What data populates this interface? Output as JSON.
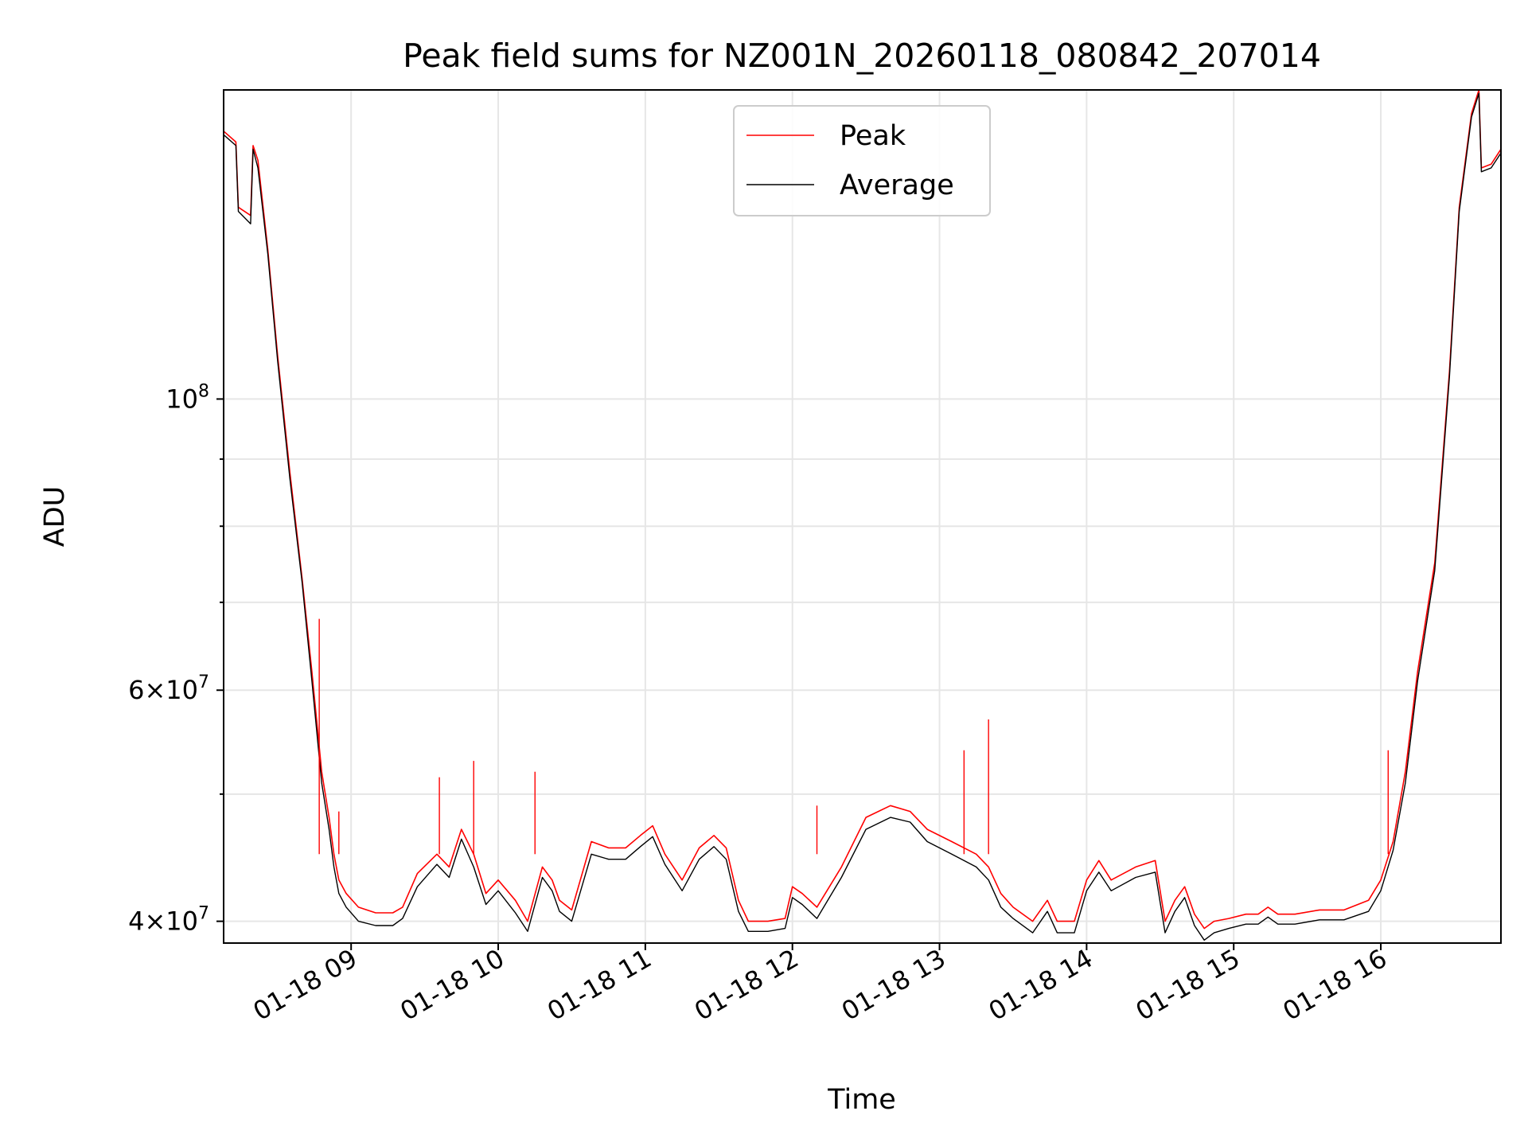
{
  "chart_data": {
    "type": "line",
    "title": "Peak field sums for NZ001N_20260118_080842_207014",
    "xlabel": "Time",
    "ylabel": "ADU",
    "yscale": "log",
    "ylim": [
      38500000,
      172000000
    ],
    "xlim": [
      "2026-01-18 08:08",
      "2026-01-18 16:49"
    ],
    "x_ticks": [
      "2026-01-18 09:00",
      "2026-01-18 10:00",
      "2026-01-18 11:00",
      "2026-01-18 12:00",
      "2026-01-18 13:00",
      "2026-01-18 14:00",
      "2026-01-18 15:00",
      "2026-01-18 16:00"
    ],
    "x_tick_labels": [
      "01-18 09",
      "01-18 10",
      "01-18 11",
      "01-18 12",
      "01-18 13",
      "01-18 14",
      "01-18 15",
      "01-18 16"
    ],
    "y_tick_labels": [
      {
        "value": 40000000,
        "mant": "4",
        "exp": "7"
      },
      {
        "value": 60000000,
        "mant": "6",
        "exp": "7"
      },
      {
        "value": 100000000,
        "mant": "",
        "exp": "8"
      }
    ],
    "y_minor_ticks": [
      50000000,
      70000000,
      80000000,
      90000000
    ],
    "grid": true,
    "legend_position": "top-center",
    "series": [
      {
        "name": "Peak",
        "color": "#ff0000",
        "x": [
          "2026-01-18 08:08",
          "2026-01-18 08:13",
          "2026-01-18 08:14",
          "2026-01-18 08:19",
          "2026-01-18 08:20",
          "2026-01-18 08:22",
          "2026-01-18 08:26",
          "2026-01-18 08:30",
          "2026-01-18 08:35",
          "2026-01-18 08:40",
          "2026-01-18 08:44",
          "2026-01-18 08:48",
          "2026-01-18 08:51",
          "2026-01-18 08:53",
          "2026-01-18 08:55",
          "2026-01-18 08:58",
          "2026-01-18 09:03",
          "2026-01-18 09:10",
          "2026-01-18 09:17",
          "2026-01-18 09:21",
          "2026-01-18 09:27",
          "2026-01-18 09:35",
          "2026-01-18 09:40",
          "2026-01-18 09:45",
          "2026-01-18 09:50",
          "2026-01-18 09:55",
          "2026-01-18 10:00",
          "2026-01-18 10:07",
          "2026-01-18 10:12",
          "2026-01-18 10:18",
          "2026-01-18 10:22",
          "2026-01-18 10:25",
          "2026-01-18 10:30",
          "2026-01-18 10:38",
          "2026-01-18 10:45",
          "2026-01-18 10:52",
          "2026-01-18 10:58",
          "2026-01-18 11:03",
          "2026-01-18 11:08",
          "2026-01-18 11:15",
          "2026-01-18 11:22",
          "2026-01-18 11:28",
          "2026-01-18 11:33",
          "2026-01-18 11:38",
          "2026-01-18 11:42",
          "2026-01-18 11:50",
          "2026-01-18 11:57",
          "2026-01-18 12:00",
          "2026-01-18 12:04",
          "2026-01-18 12:10",
          "2026-01-18 12:20",
          "2026-01-18 12:30",
          "2026-01-18 12:40",
          "2026-01-18 12:48",
          "2026-01-18 12:55",
          "2026-01-18 13:05",
          "2026-01-18 13:15",
          "2026-01-18 13:20",
          "2026-01-18 13:25",
          "2026-01-18 13:30",
          "2026-01-18 13:38",
          "2026-01-18 13:44",
          "2026-01-18 13:48",
          "2026-01-18 13:55",
          "2026-01-18 14:00",
          "2026-01-18 14:05",
          "2026-01-18 14:10",
          "2026-01-18 14:20",
          "2026-01-18 14:28",
          "2026-01-18 14:32",
          "2026-01-18 14:36",
          "2026-01-18 14:40",
          "2026-01-18 14:44",
          "2026-01-18 14:48",
          "2026-01-18 14:52",
          "2026-01-18 14:58",
          "2026-01-18 15:05",
          "2026-01-18 15:10",
          "2026-01-18 15:14",
          "2026-01-18 15:18",
          "2026-01-18 15:25",
          "2026-01-18 15:35",
          "2026-01-18 15:45",
          "2026-01-18 15:55",
          "2026-01-18 16:00",
          "2026-01-18 16:05",
          "2026-01-18 16:10",
          "2026-01-18 16:15",
          "2026-01-18 16:22",
          "2026-01-18 16:28",
          "2026-01-18 16:32",
          "2026-01-18 16:37",
          "2026-01-18 16:40",
          "2026-01-18 16:41",
          "2026-01-18 16:45",
          "2026-01-18 16:49"
        ],
        "y": [
          160000000,
          157000000,
          140000000,
          138000000,
          156000000,
          152000000,
          130000000,
          108000000,
          88000000,
          73000000,
          62000000,
          52000000,
          48000000,
          45000000,
          43000000,
          42000000,
          41000000,
          40600000,
          40600000,
          41000000,
          43500000,
          45000000,
          44000000,
          47000000,
          45000000,
          42000000,
          43000000,
          41500000,
          40000000,
          44000000,
          43000000,
          41500000,
          40800000,
          46000000,
          45500000,
          45500000,
          46500000,
          47300000,
          45000000,
          43000000,
          45500000,
          46500000,
          45500000,
          41500000,
          40000000,
          40000000,
          40200000,
          42500000,
          42000000,
          41000000,
          44000000,
          48000000,
          49000000,
          48500000,
          47000000,
          46000000,
          45000000,
          44000000,
          42000000,
          41000000,
          40000000,
          41500000,
          40000000,
          40000000,
          43000000,
          44500000,
          43000000,
          44000000,
          44500000,
          40000000,
          41500000,
          42500000,
          40500000,
          39500000,
          40000000,
          40200000,
          40500000,
          40500000,
          41000000,
          40500000,
          40500000,
          40800000,
          40800000,
          41500000,
          43000000,
          46000000,
          52000000,
          62000000,
          75000000,
          105000000,
          140000000,
          165000000,
          172000000,
          150000000,
          151000000,
          155000000
        ]
      },
      {
        "name": "Average",
        "color": "#000000",
        "x": [
          "2026-01-18 08:08",
          "2026-01-18 08:13",
          "2026-01-18 08:14",
          "2026-01-18 08:19",
          "2026-01-18 08:20",
          "2026-01-18 08:22",
          "2026-01-18 08:26",
          "2026-01-18 08:30",
          "2026-01-18 08:35",
          "2026-01-18 08:40",
          "2026-01-18 08:44",
          "2026-01-18 08:48",
          "2026-01-18 08:51",
          "2026-01-18 08:53",
          "2026-01-18 08:55",
          "2026-01-18 08:58",
          "2026-01-18 09:03",
          "2026-01-18 09:10",
          "2026-01-18 09:17",
          "2026-01-18 09:21",
          "2026-01-18 09:27",
          "2026-01-18 09:35",
          "2026-01-18 09:40",
          "2026-01-18 09:45",
          "2026-01-18 09:50",
          "2026-01-18 09:55",
          "2026-01-18 10:00",
          "2026-01-18 10:07",
          "2026-01-18 10:12",
          "2026-01-18 10:18",
          "2026-01-18 10:22",
          "2026-01-18 10:25",
          "2026-01-18 10:30",
          "2026-01-18 10:38",
          "2026-01-18 10:45",
          "2026-01-18 10:52",
          "2026-01-18 10:58",
          "2026-01-18 11:03",
          "2026-01-18 11:08",
          "2026-01-18 11:15",
          "2026-01-18 11:22",
          "2026-01-18 11:28",
          "2026-01-18 11:33",
          "2026-01-18 11:38",
          "2026-01-18 11:42",
          "2026-01-18 11:50",
          "2026-01-18 11:57",
          "2026-01-18 12:00",
          "2026-01-18 12:04",
          "2026-01-18 12:10",
          "2026-01-18 12:20",
          "2026-01-18 12:30",
          "2026-01-18 12:40",
          "2026-01-18 12:48",
          "2026-01-18 12:55",
          "2026-01-18 13:05",
          "2026-01-18 13:15",
          "2026-01-18 13:20",
          "2026-01-18 13:25",
          "2026-01-18 13:30",
          "2026-01-18 13:38",
          "2026-01-18 13:44",
          "2026-01-18 13:48",
          "2026-01-18 13:55",
          "2026-01-18 14:00",
          "2026-01-18 14:05",
          "2026-01-18 14:10",
          "2026-01-18 14:20",
          "2026-01-18 14:28",
          "2026-01-18 14:32",
          "2026-01-18 14:36",
          "2026-01-18 14:40",
          "2026-01-18 14:44",
          "2026-01-18 14:48",
          "2026-01-18 14:52",
          "2026-01-18 14:58",
          "2026-01-18 15:05",
          "2026-01-18 15:10",
          "2026-01-18 15:14",
          "2026-01-18 15:18",
          "2026-01-18 15:25",
          "2026-01-18 15:35",
          "2026-01-18 15:45",
          "2026-01-18 15:55",
          "2026-01-18 16:00",
          "2026-01-18 16:05",
          "2026-01-18 16:10",
          "2026-01-18 16:15",
          "2026-01-18 16:22",
          "2026-01-18 16:28",
          "2026-01-18 16:32",
          "2026-01-18 16:37",
          "2026-01-18 16:40",
          "2026-01-18 16:41",
          "2026-01-18 16:45",
          "2026-01-18 16:49"
        ],
        "y": [
          159000000,
          156000000,
          139000000,
          136000000,
          155000000,
          150000000,
          129000000,
          107000000,
          87000000,
          72500000,
          61000000,
          51000000,
          47000000,
          44000000,
          42000000,
          41000000,
          40000000,
          39700000,
          39700000,
          40200000,
          42500000,
          44200000,
          43200000,
          46200000,
          44000000,
          41200000,
          42200000,
          40600000,
          39300000,
          43200000,
          42200000,
          40700000,
          40000000,
          45000000,
          44600000,
          44600000,
          45600000,
          46400000,
          44200000,
          42200000,
          44600000,
          45600000,
          44600000,
          40700000,
          39300000,
          39300000,
          39500000,
          41700000,
          41200000,
          40200000,
          43200000,
          47000000,
          48000000,
          47600000,
          46000000,
          45000000,
          44000000,
          43000000,
          41000000,
          40200000,
          39200000,
          40700000,
          39200000,
          39200000,
          42200000,
          43600000,
          42200000,
          43200000,
          43600000,
          39200000,
          40700000,
          41700000,
          39700000,
          38700000,
          39200000,
          39500000,
          39800000,
          39800000,
          40300000,
          39800000,
          39800000,
          40100000,
          40100000,
          40700000,
          42200000,
          45300000,
          51000000,
          61000000,
          74000000,
          104000000,
          139000000,
          164000000,
          171000000,
          149000000,
          150000000,
          154000000
        ]
      }
    ],
    "spikes": [
      {
        "series": "Peak",
        "x": "2026-01-18 08:47",
        "y": 68000000
      },
      {
        "series": "Peak",
        "x": "2026-01-18 08:55",
        "y": 48500000
      },
      {
        "series": "Peak",
        "x": "2026-01-18 09:36",
        "y": 51500000
      },
      {
        "series": "Peak",
        "x": "2026-01-18 09:50",
        "y": 53000000
      },
      {
        "series": "Peak",
        "x": "2026-01-18 10:15",
        "y": 52000000
      },
      {
        "series": "Peak",
        "x": "2026-01-18 12:10",
        "y": 49000000
      },
      {
        "series": "Peak",
        "x": "2026-01-18 13:10",
        "y": 54000000
      },
      {
        "series": "Peak",
        "x": "2026-01-18 13:20",
        "y": 57000000
      },
      {
        "series": "Peak",
        "x": "2026-01-18 16:03",
        "y": 54000000
      }
    ]
  }
}
